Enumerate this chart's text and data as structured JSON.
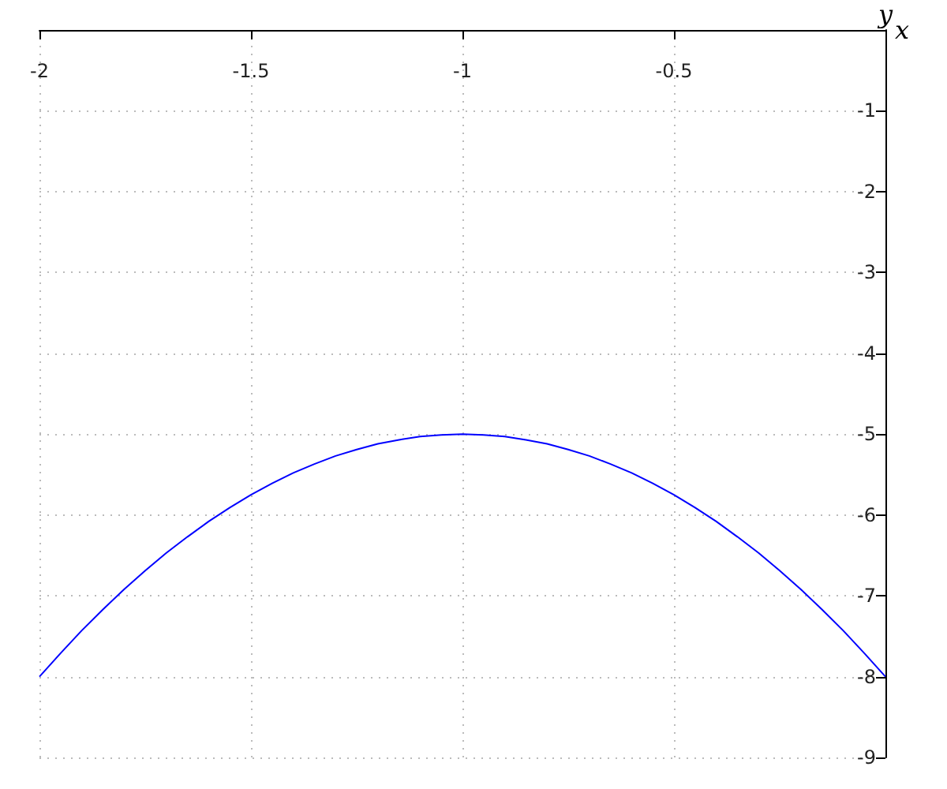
{
  "chart_data": {
    "type": "line",
    "xlabel": "x",
    "ylabel": "y",
    "x": [
      -2,
      -1.95,
      -1.9,
      -1.85,
      -1.8,
      -1.75,
      -1.7,
      -1.65,
      -1.6,
      -1.55,
      -1.5,
      -1.45,
      -1.4,
      -1.35,
      -1.3,
      -1.25,
      -1.2,
      -1.15,
      -1.1,
      -1.05,
      -1,
      -0.95,
      -0.9,
      -0.85,
      -0.8,
      -0.75,
      -0.7,
      -0.65,
      -0.6,
      -0.55,
      -0.5,
      -0.45,
      -0.4,
      -0.35,
      -0.3,
      -0.25,
      -0.2,
      -0.15,
      -0.1,
      -0.05,
      0
    ],
    "values": [
      -8,
      -7.71,
      -7.43,
      -7.17,
      -6.92,
      -6.69,
      -6.47,
      -6.27,
      -6.08,
      -5.91,
      -5.75,
      -5.61,
      -5.48,
      -5.37,
      -5.27,
      -5.19,
      -5.12,
      -5.07,
      -5.03,
      -5.01,
      -5,
      -5.01,
      -5.03,
      -5.07,
      -5.12,
      -5.19,
      -5.27,
      -5.37,
      -5.48,
      -5.61,
      -5.75,
      -5.91,
      -6.08,
      -6.27,
      -6.47,
      -6.69,
      -6.92,
      -7.17,
      -7.43,
      -7.71,
      -8
    ],
    "color": "#0000ff",
    "xlim": [
      -2,
      0
    ],
    "ylim": [
      -9,
      0
    ],
    "xticks": [
      -2,
      -1.5,
      -1,
      -0.5
    ],
    "yticks": [
      -9,
      -8,
      -7,
      -6,
      -5,
      -4,
      -3,
      -2,
      -1
    ],
    "grid": true,
    "marker": "none",
    "line_style": "solid"
  }
}
